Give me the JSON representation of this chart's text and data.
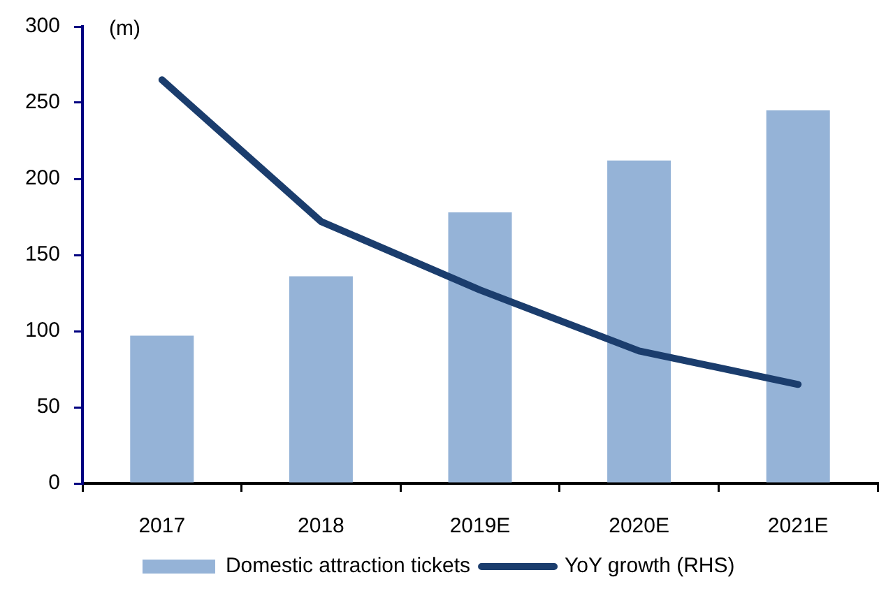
{
  "chart_data": {
    "type": "bar",
    "ylabel": "(m)",
    "categories": [
      "2017",
      "2018",
      "2019E",
      "2020E",
      "2021E"
    ],
    "series": [
      {
        "name": "Domestic attraction tickets",
        "color": "#95b3d7",
        "values": [
          97,
          136,
          178,
          212,
          245
        ]
      },
      {
        "name": "YoY growth (RHS)",
        "type": "line",
        "color": "#1b3d6d",
        "values": [
          265,
          172,
          127,
          87,
          65
        ]
      }
    ],
    "ylim": [
      0,
      300
    ],
    "yticks": [
      0,
      50,
      100,
      150,
      200,
      250,
      300
    ],
    "legend": "bottom",
    "marker": "none",
    "line_style": "solid"
  }
}
